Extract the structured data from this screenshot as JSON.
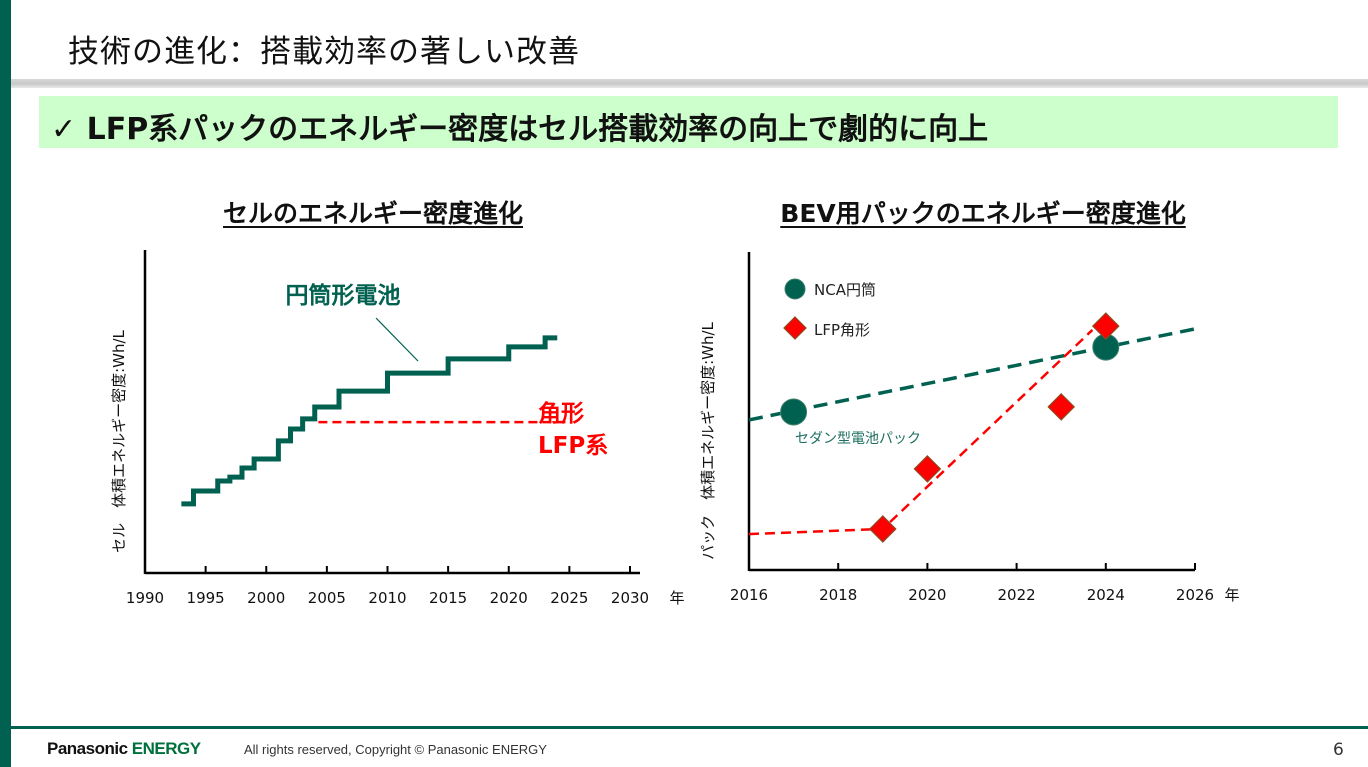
{
  "slide": {
    "title": "技術の進化：搭載効率の著しい改善",
    "banner": "✓ LFP系パックのエネルギー密度はセル搭載効率の向上で劇的に向上",
    "page_number": "6",
    "accent_color": "#006150",
    "banner_color": "#ccffcc"
  },
  "footer": {
    "logo_black": "Panasonic",
    "logo_green": "ENERGY",
    "copyright": "All rights reserved, Copyright © Panasonic ENERGY"
  },
  "chart_data": [
    {
      "type": "line",
      "title": "セルのエネルギー密度進化",
      "ylabel": "セル　体積エネルギー密度:Wh/L",
      "xlabel": "年",
      "xlim": [
        1990,
        2030
      ],
      "x_ticks": [
        "1990",
        "1995",
        "2000",
        "2005",
        "2010",
        "2015",
        "2020",
        "2025",
        "2030"
      ],
      "ylim": [
        0,
        100
      ],
      "y_ticks_shown": false,
      "grid": false,
      "series": [
        {
          "name": "円筒形電池",
          "color": "#006150",
          "style": "step",
          "points": [
            [
              1993,
              21.4
            ],
            [
              1994,
              25.4
            ],
            [
              1996,
              28.5
            ],
            [
              1997,
              29.7
            ],
            [
              1998,
              32.5
            ],
            [
              1999,
              35.3
            ],
            [
              2001,
              40.9
            ],
            [
              2002,
              44.6
            ],
            [
              2003,
              47.7
            ],
            [
              2004,
              51.4
            ],
            [
              2006,
              56.3
            ],
            [
              2010,
              61.9
            ],
            [
              2015,
              66.3
            ],
            [
              2020,
              70.0
            ],
            [
              2023,
              72.8
            ],
            [
              2024,
              72.8
            ]
          ]
        },
        {
          "name": "角形\nLFP系",
          "name_lines": [
            "角形",
            "LFP系"
          ],
          "color": "#ff0000",
          "style": "dashed",
          "points": [
            [
              2004.3,
              46.7
            ],
            [
              2025,
              46.7
            ]
          ]
        }
      ]
    },
    {
      "type": "scatter",
      "title": "BEV用パックのエネルギー密度進化",
      "ylabel": "パック　体積エネルギー密度:Wh/L",
      "xlabel": "年",
      "xlim": [
        2016,
        2026
      ],
      "x_ticks": [
        "2016",
        "2018",
        "2020",
        "2022",
        "2024",
        "2026"
      ],
      "ylim": [
        0,
        100
      ],
      "y_ticks_shown": false,
      "grid": false,
      "legend_position": "top-left",
      "annotation": "セダン型電池パック",
      "series": [
        {
          "name": "NCA円筒",
          "marker": "circle",
          "color": "#006150",
          "points": [
            [
              2017,
              49.7
            ],
            [
              2024,
              70.1
            ]
          ],
          "trend": [
            [
              2016,
              47.2
            ],
            [
              2026.1,
              76.1
            ]
          ]
        },
        {
          "name": "LFP角形",
          "marker": "diamond",
          "color": "#ff0000",
          "points": [
            [
              2019,
              12.9
            ],
            [
              2020,
              31.8
            ],
            [
              2023,
              51.3
            ],
            [
              2024,
              76.7
            ]
          ],
          "trend": [
            [
              2016,
              11.3
            ],
            [
              2019,
              12.9
            ],
            [
              2023.7,
              75.5
            ]
          ]
        }
      ]
    }
  ]
}
